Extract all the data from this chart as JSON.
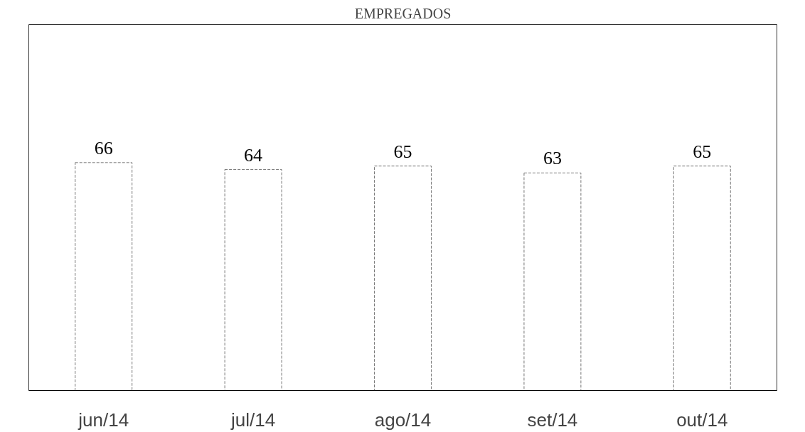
{
  "chart_data": {
    "type": "bar",
    "title": "EMPREGADOS",
    "categories": [
      "jun/14",
      "jul/14",
      "ago/14",
      "set/14",
      "out/14"
    ],
    "values": [
      66,
      64,
      65,
      63,
      65
    ],
    "color": "#ffffff",
    "ylim": [
      0,
      106
    ],
    "data_labels": true,
    "grid": false,
    "tick_labels": "x"
  }
}
